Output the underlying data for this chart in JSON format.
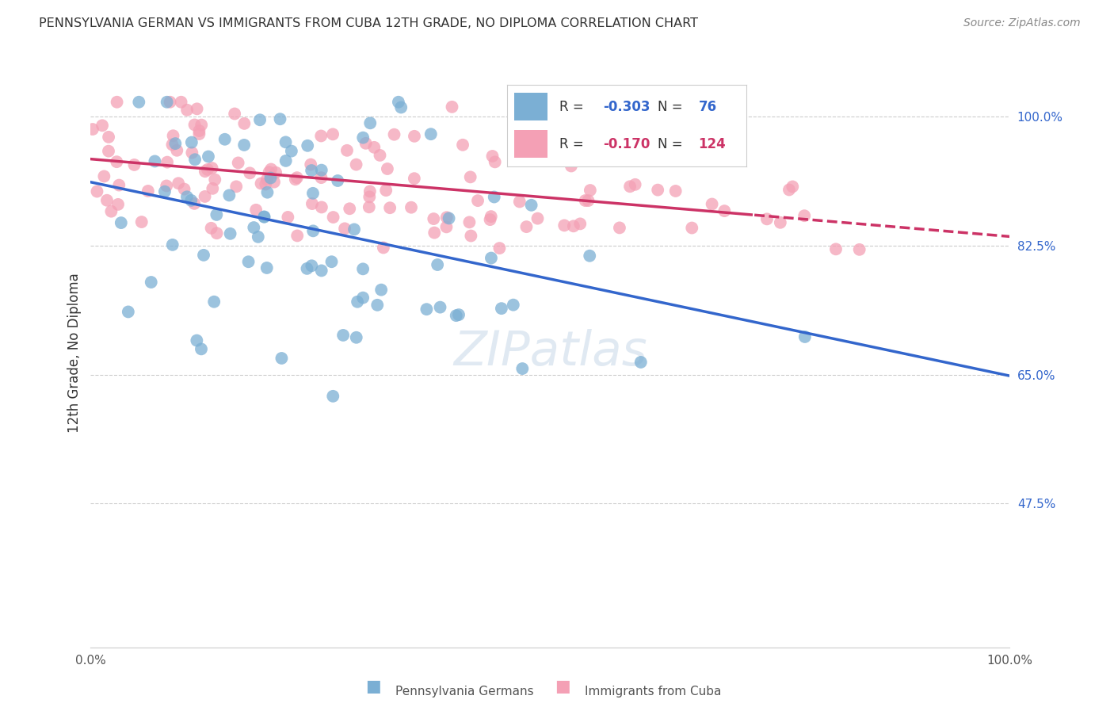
{
  "title": "PENNSYLVANIA GERMAN VS IMMIGRANTS FROM CUBA 12TH GRADE, NO DIPLOMA CORRELATION CHART",
  "source": "Source: ZipAtlas.com",
  "ylabel": "12th Grade, No Diploma",
  "y_ticks": [
    0.475,
    0.65,
    0.825,
    1.0
  ],
  "y_tick_labels": [
    "47.5%",
    "65.0%",
    "82.5%",
    "100.0%"
  ],
  "blue_R": -0.303,
  "blue_N": 76,
  "pink_R": -0.17,
  "pink_N": 124,
  "blue_color": "#7bafd4",
  "pink_color": "#f4a0b5",
  "blue_line_color": "#3366cc",
  "pink_line_color": "#cc3366",
  "legend_label_blue": "Pennsylvania Germans",
  "legend_label_pink": "Immigrants from Cuba",
  "watermark": "ZIPatlas"
}
